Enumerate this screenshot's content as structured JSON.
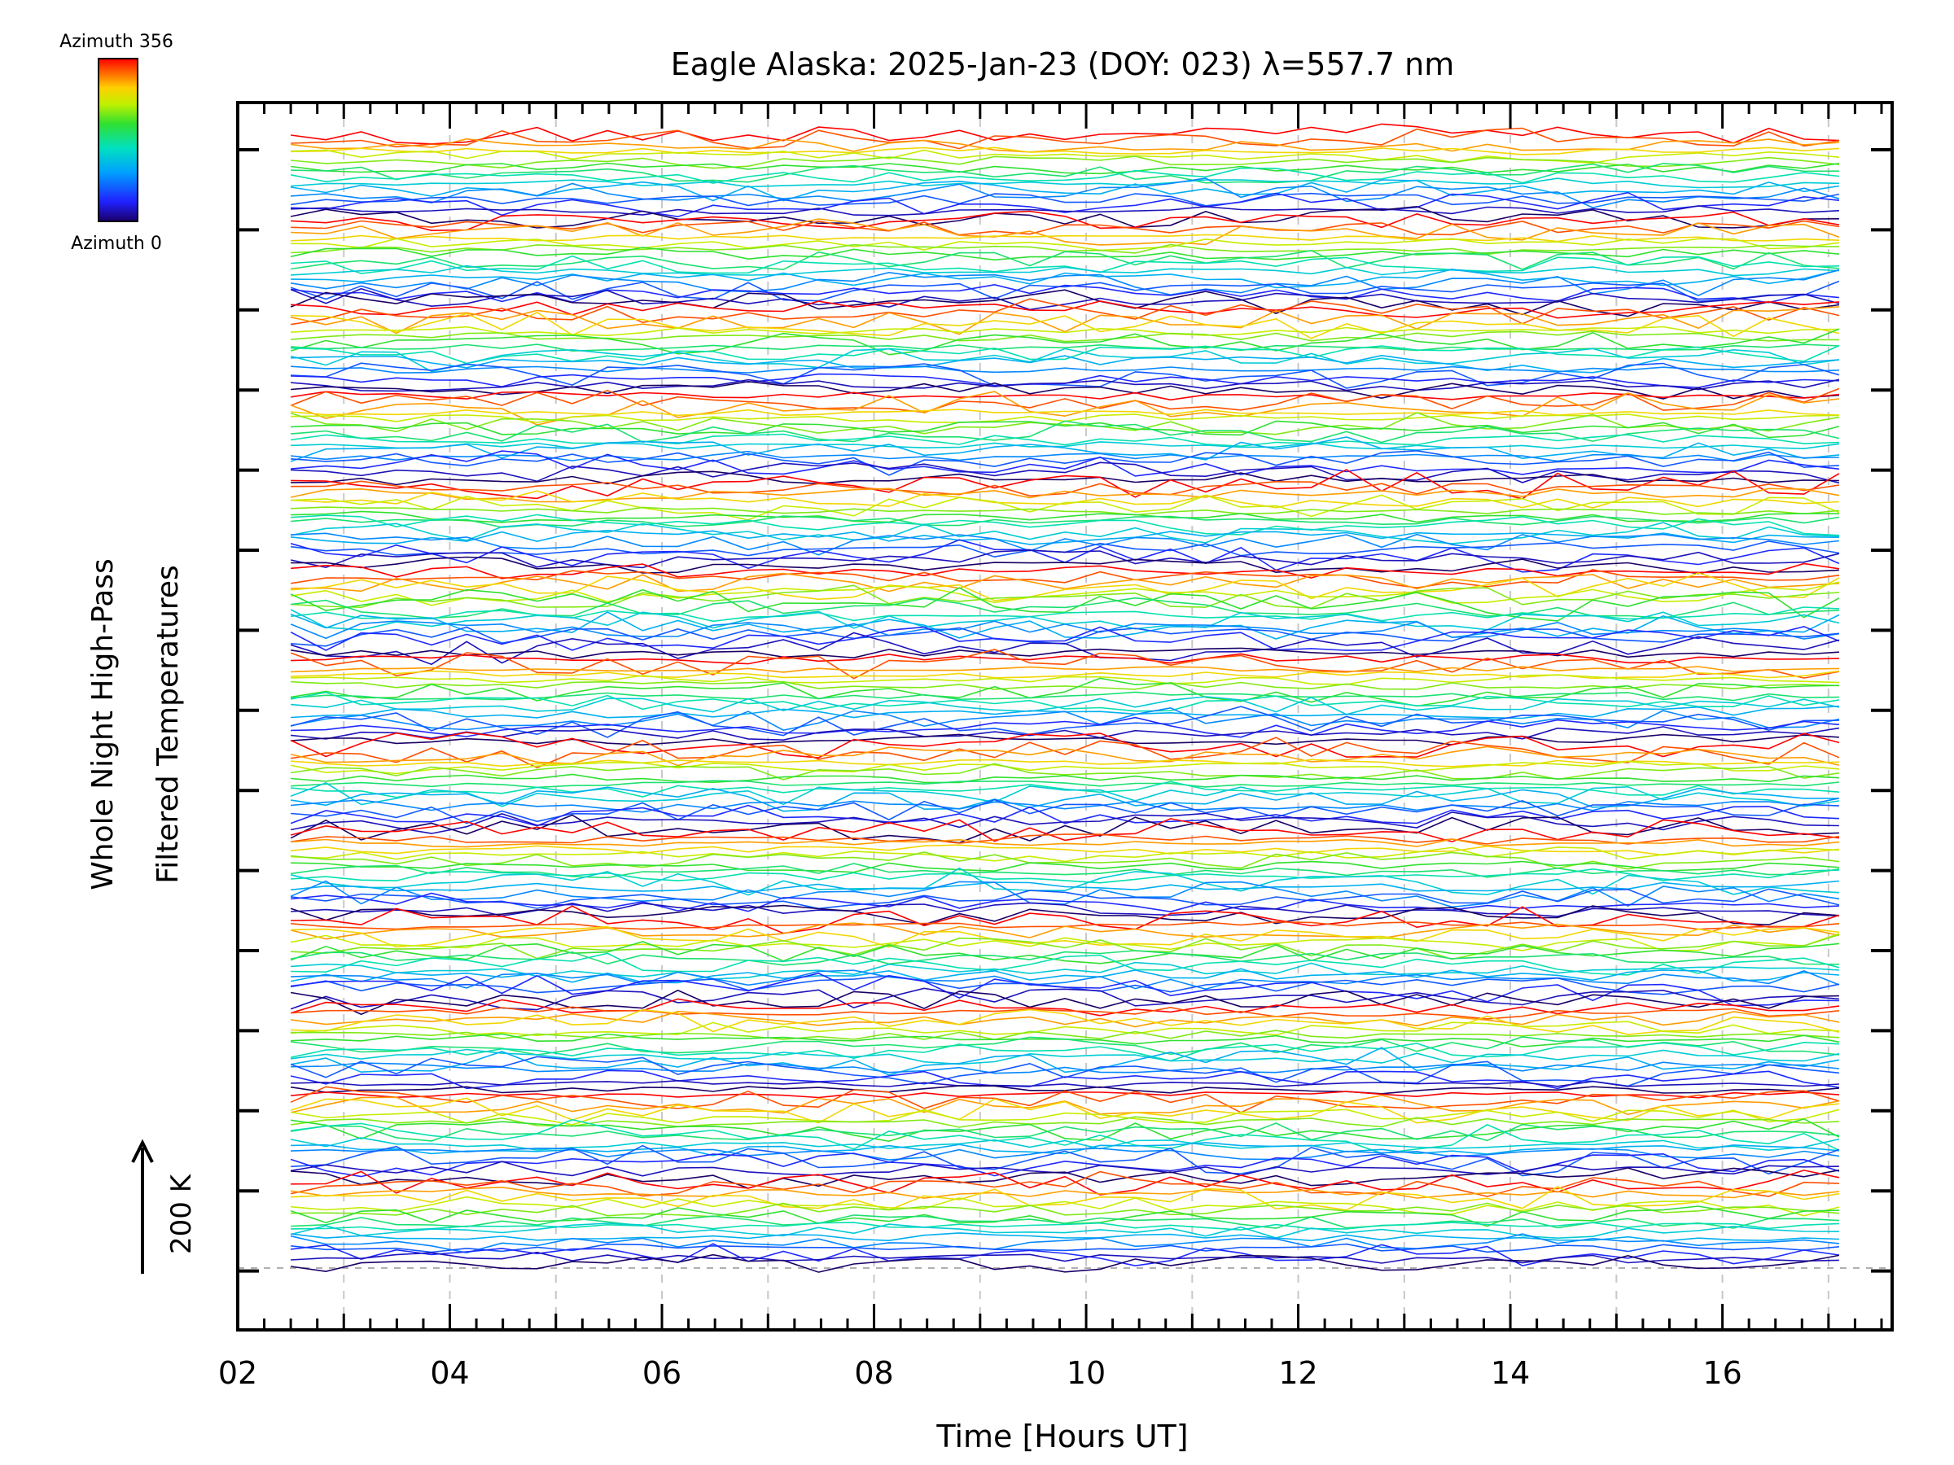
{
  "chart_data": {
    "type": "line",
    "title": "Eagle Alaska: 2025-Jan-23 (DOY: 023) λ=557.7 nm",
    "xlabel": "Time [Hours UT]",
    "ylabel_line1": "Whole Night High-Pass",
    "ylabel_line2": "Filtered Temperatures",
    "xlim": [
      2.0,
      17.6
    ],
    "x_ticks": [
      "02",
      "04",
      "06",
      "08",
      "10",
      "12",
      "14",
      "16"
    ],
    "x_tick_values": [
      2,
      4,
      6,
      8,
      10,
      12,
      14,
      16
    ],
    "x_start": 2.5,
    "x_end": 17.1,
    "grid": "vertical dashed at each hour, horizontal dashed baseline",
    "scale_bar_label": "200 K",
    "colorbar": {
      "top_label": "Azimuth 356",
      "bottom_label": "Azimuth 0",
      "colors": [
        "#1a0066",
        "#2020ff",
        "#00a0ff",
        "#00e0c0",
        "#30e030",
        "#c0f000",
        "#ffd000",
        "#ff6000",
        "#ff0000"
      ]
    },
    "series_groups": 13,
    "series_per_group": 16,
    "legend": "colorbar top-left"
  }
}
